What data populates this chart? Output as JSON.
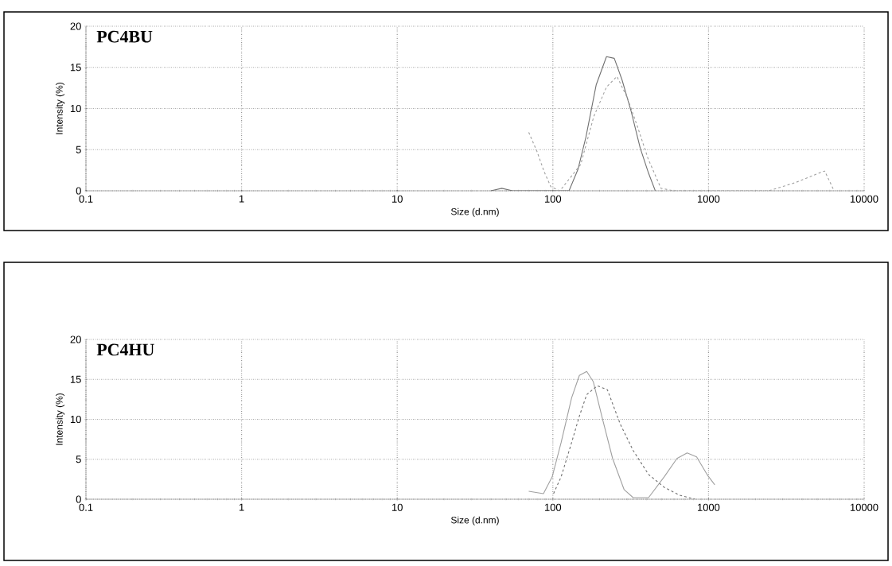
{
  "chart_data": [
    {
      "type": "line",
      "title": "PC4BU",
      "xlabel": "Size (d.nm)",
      "ylabel": "Intensity (%)",
      "log": "x",
      "grid": true,
      "xlim": [
        0.1,
        10000
      ],
      "ylim": [
        0,
        20
      ],
      "xticks": [
        0.1,
        1,
        10,
        100,
        1000,
        10000
      ],
      "yticks": [
        0,
        5,
        10,
        15,
        20
      ],
      "series": [
        {
          "color": "#707070",
          "line_style": "solid",
          "x": [
            40,
            47,
            55,
            127,
            145,
            163,
            190,
            221,
            248,
            278,
            318,
            364,
            409,
            455
          ],
          "values": [
            0,
            0.3,
            0,
            0,
            2.6,
            6.5,
            12.9,
            16.3,
            16.1,
            13.5,
            9.7,
            5.2,
            2.3,
            0
          ]
        },
        {
          "color": "#a0a0a0",
          "line_style": "dashed",
          "x": [
            70,
            79,
            88,
            97,
            111,
            151,
            183,
            221,
            258,
            301,
            351,
            409,
            495,
            600,
            2445,
            3620,
            5370,
            5580,
            6410
          ],
          "values": [
            7.1,
            4.8,
            2.3,
            0.5,
            0,
            3.2,
            9,
            12.6,
            13.9,
            11.3,
            7.7,
            3.9,
            0.3,
            0,
            0,
            1,
            2.3,
            2.4,
            0
          ]
        }
      ]
    },
    {
      "type": "line",
      "title": "PC4HU",
      "xlabel": "Size (d.nm)",
      "ylabel": "Intensity (%)",
      "log": "x",
      "grid": true,
      "xlim": [
        0.1,
        10000
      ],
      "ylim": [
        0,
        20
      ],
      "xticks": [
        0.1,
        1,
        10,
        100,
        1000,
        10000
      ],
      "yticks": [
        0,
        5,
        10,
        15,
        20
      ],
      "series": [
        {
          "color": "#a0a0a0",
          "line_style": "solid",
          "x": [
            70,
            87,
            99,
            113,
            132,
            148,
            165,
            182,
            208,
            242,
            287,
            328,
            412,
            519,
            627,
            729,
            839,
            978,
            1097
          ],
          "values": [
            1.0,
            0.7,
            2.8,
            7.1,
            12.7,
            15.5,
            16.0,
            14.7,
            10.1,
            5.1,
            1.2,
            0.2,
            0.2,
            2.8,
            5.1,
            5.8,
            5.3,
            3.1,
            1.8
          ]
        },
        {
          "color": "#707070",
          "line_style": "dashed",
          "x": [
            101,
            113,
            132,
            148,
            165,
            193,
            224,
            271,
            328,
            412,
            519,
            652,
            819
          ],
          "values": [
            0.7,
            2.8,
            7.1,
            10.4,
            13.1,
            14.2,
            13.7,
            9.4,
            6.1,
            3.1,
            1.5,
            0.5,
            0
          ]
        }
      ]
    }
  ]
}
